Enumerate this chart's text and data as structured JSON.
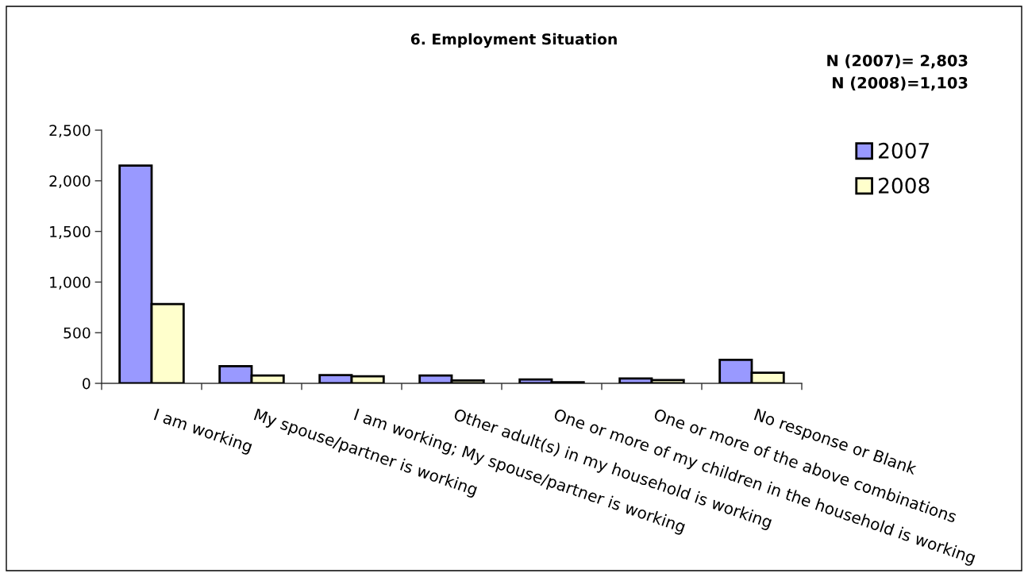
{
  "chart_data": {
    "type": "bar",
    "title": "6. Employment Situation",
    "categories": [
      "I am working",
      "My spouse/partner is working",
      "I am working; My spouse/partner is working",
      "Other adult(s) in my household is working",
      "One or more of my children in the household is working",
      "One or more of the above combinations",
      "No response or Blank"
    ],
    "series": [
      {
        "name": "2007",
        "color": "#9999ff",
        "values": [
          2150,
          170,
          82,
          78,
          38,
          48,
          232
        ]
      },
      {
        "name": "2008",
        "color": "#ffffcc",
        "values": [
          782,
          78,
          70,
          28,
          10,
          33,
          105
        ]
      }
    ],
    "ylim": [
      0,
      2500
    ],
    "yticks": [
      0,
      500,
      {
        "value": 1000,
        "label": "1,000"
      },
      {
        "value": 1500,
        "label": "1,500"
      },
      {
        "value": 2000,
        "label": "2,000"
      },
      {
        "value": 2500,
        "label": "2,500"
      }
    ],
    "legend": "top right",
    "annotations": [
      "N (2007)= 2,803",
      "N (2008)=1,103"
    ]
  }
}
